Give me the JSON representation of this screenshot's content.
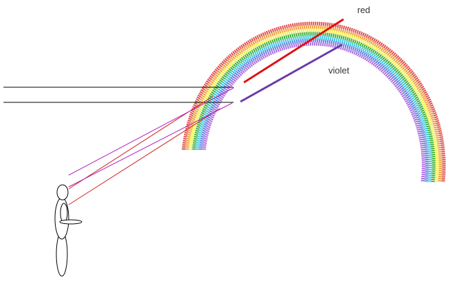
{
  "labels": {
    "red": "red",
    "violet": "violet"
  }
}
